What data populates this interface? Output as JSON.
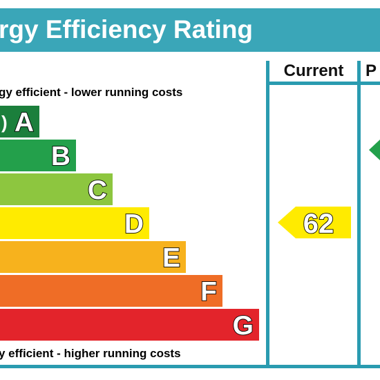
{
  "title": "rgy Efficiency Rating",
  "columns": {
    "current": "Current",
    "potential": "P"
  },
  "captions": {
    "top": "gy efficient - lower running costs",
    "bottom": "y efficient - higher running costs"
  },
  "colors": {
    "title_bar": "#3aa6b8",
    "frame": "#2a9bb0"
  },
  "chart_data": {
    "type": "bar",
    "categories": [
      "A",
      "B",
      "C",
      "D",
      "E",
      "F",
      "G"
    ],
    "bands": [
      {
        "letter": "A",
        "range": ")",
        "color": "#1b7f3c"
      },
      {
        "letter": "B",
        "range": "",
        "color": "#23a04b"
      },
      {
        "letter": "C",
        "range": "",
        "color": "#8dc63f"
      },
      {
        "letter": "D",
        "range": "",
        "color": "#ffeb00"
      },
      {
        "letter": "E",
        "range": "",
        "color": "#f7b21d"
      },
      {
        "letter": "F",
        "range": "",
        "color": "#ef6d26"
      },
      {
        "letter": "G",
        "range": "",
        "color": "#e3242b"
      }
    ],
    "current": {
      "value": 62,
      "band": "D",
      "color": "#ffeb00"
    },
    "potential": {
      "value": null,
      "band": "B",
      "color": "#23a04b"
    }
  }
}
